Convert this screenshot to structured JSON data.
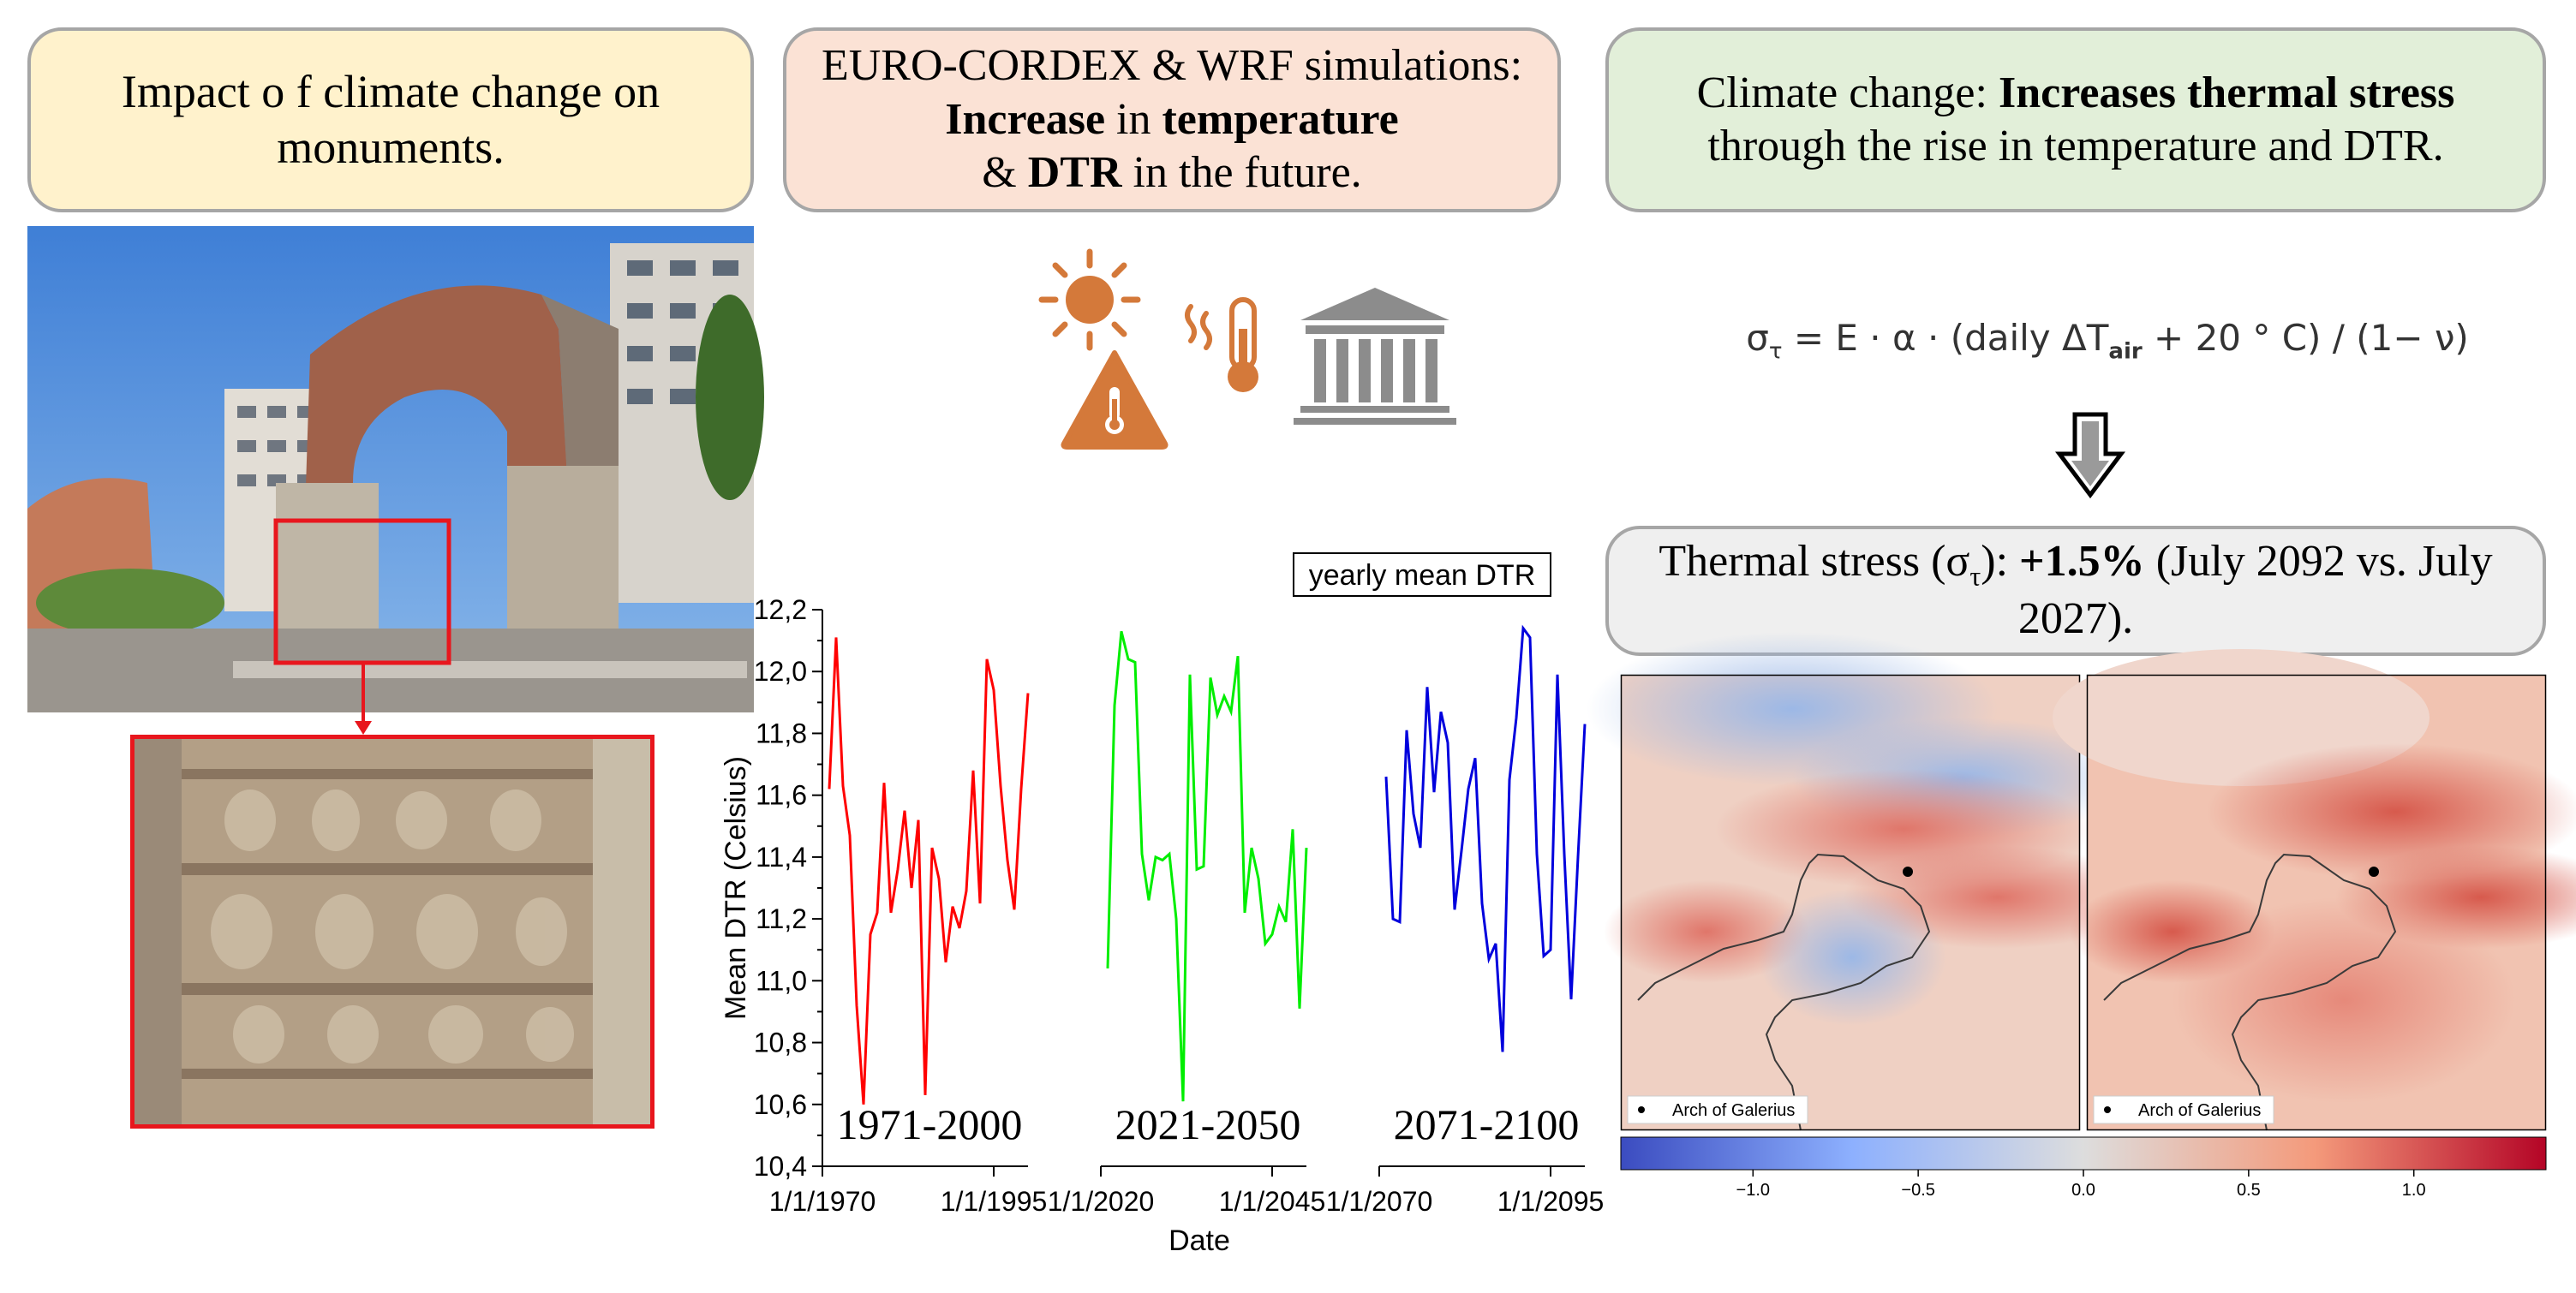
{
  "boxes": {
    "impact": {
      "text": "Impact o f climate change on monuments."
    },
    "simulations": {
      "pre": "EURO-CORDEX & WRF simulations: ",
      "b1": "Increase",
      "mid1": " in ",
      "b2": "temperature",
      "mid2": " & ",
      "b3": "DTR",
      "post": " in the future."
    },
    "climate": {
      "pre": "Climate change: ",
      "b1": "Increases thermal stress",
      "post": " through the rise in temperature and DTR."
    },
    "stress": {
      "pre": "Thermal stress (σ",
      "sub": "τ",
      "mid": "): ",
      "b1": "+1.5%",
      "post": " (July 2092 vs. July 2027)."
    }
  },
  "formula": {
    "lhs": "σ",
    "lhs_sub": "τ",
    "rhs": " = E · α · (daily ΔT",
    "rhs_sub": "air",
    "rhs_end": " + 20 ° C) / (1− ν)"
  },
  "icons": [
    "sun-icon",
    "warning-thermometer-icon",
    "heat-thermometer-icon",
    "monument-icon",
    "down-arrow-icon"
  ],
  "colors": {
    "accent_icon": "#d4793a",
    "monument_gray": "#8c8c8c",
    "series1": "#ff0000",
    "series2": "#00ee00",
    "series3": "#0000dd",
    "photo_frame": "#e8161d"
  },
  "chart_data": {
    "type": "line",
    "legend": "yearly mean DTR",
    "xlabel": "Date",
    "ylabel": "Mean DTR (Celsius)",
    "ylim": [
      10.4,
      12.2
    ],
    "yticks": [
      "10,4",
      "10,6",
      "10,8",
      "11,0",
      "11,2",
      "11,4",
      "11,6",
      "11,8",
      "12,0",
      "12,2"
    ],
    "xtick_labels": [
      "1/1/1970",
      "1/1/1995",
      "1/1/2020",
      "1/1/2045",
      "1/1/2070",
      "1/1/2095"
    ],
    "series": [
      {
        "period": "1971-2000",
        "start_year": 1971,
        "values": [
          11.62,
          12.11,
          11.63,
          11.47,
          10.92,
          10.6,
          11.15,
          11.22,
          11.64,
          11.22,
          11.36,
          11.55,
          11.3,
          11.52,
          10.63,
          11.43,
          11.33,
          11.06,
          11.24,
          11.17,
          11.29,
          11.68,
          11.25,
          12.04,
          11.94,
          11.63,
          11.39,
          11.23,
          11.62,
          11.93
        ]
      },
      {
        "period": "2021-2050",
        "start_year": 2021,
        "values": [
          11.04,
          11.89,
          12.13,
          12.04,
          12.03,
          11.41,
          11.26,
          11.4,
          11.39,
          11.41,
          11.2,
          10.61,
          11.99,
          11.36,
          11.37,
          11.98,
          11.86,
          11.92,
          11.87,
          12.05,
          11.22,
          11.43,
          11.33,
          11.12,
          11.15,
          11.24,
          11.19,
          11.49,
          10.91,
          11.43
        ]
      },
      {
        "period": "2071-2100",
        "start_year": 2071,
        "values": [
          11.66,
          11.2,
          11.19,
          11.81,
          11.54,
          11.43,
          11.95,
          11.61,
          11.87,
          11.77,
          11.23,
          11.42,
          11.62,
          11.72,
          11.25,
          11.07,
          11.12,
          10.77,
          11.65,
          11.85,
          12.14,
          12.11,
          11.41,
          11.08,
          11.1,
          11.99,
          11.41,
          10.94,
          11.4,
          11.83
        ]
      }
    ]
  },
  "maps": {
    "legend_label": "Arch of Galerius",
    "colorbar_ticks": [
      "−1.0",
      "−0.5",
      "0.0",
      "0.5",
      "1.0"
    ],
    "colorbar_range": [
      -1.4,
      1.4
    ]
  }
}
